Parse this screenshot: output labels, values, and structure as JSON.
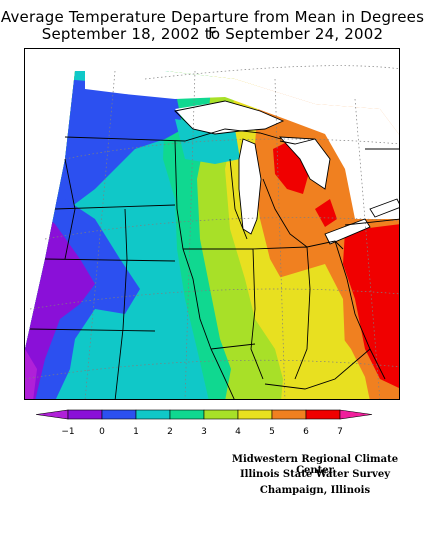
{
  "title": {
    "line1": "Average Temperature Departure from Mean in Degrees F",
    "line2": "September 18, 2002 to September 24, 2002"
  },
  "legend": {
    "ticks": [
      "−1",
      "0",
      "1",
      "2",
      "3",
      "4",
      "5",
      "6",
      "7"
    ],
    "colors": [
      "#8a10d8",
      "#2c50f0",
      "#10c8c8",
      "#10d890",
      "#a8e028",
      "#e8e020",
      "#f08020",
      "#f00000"
    ],
    "end_left_color": "#b020d8",
    "end_right_color": "#f0209c"
  },
  "credits": {
    "line1": "Midwestern Regional Climate Center",
    "line2": "Illinois State Water Survey",
    "line3": "Champaign, Illinois"
  }
}
